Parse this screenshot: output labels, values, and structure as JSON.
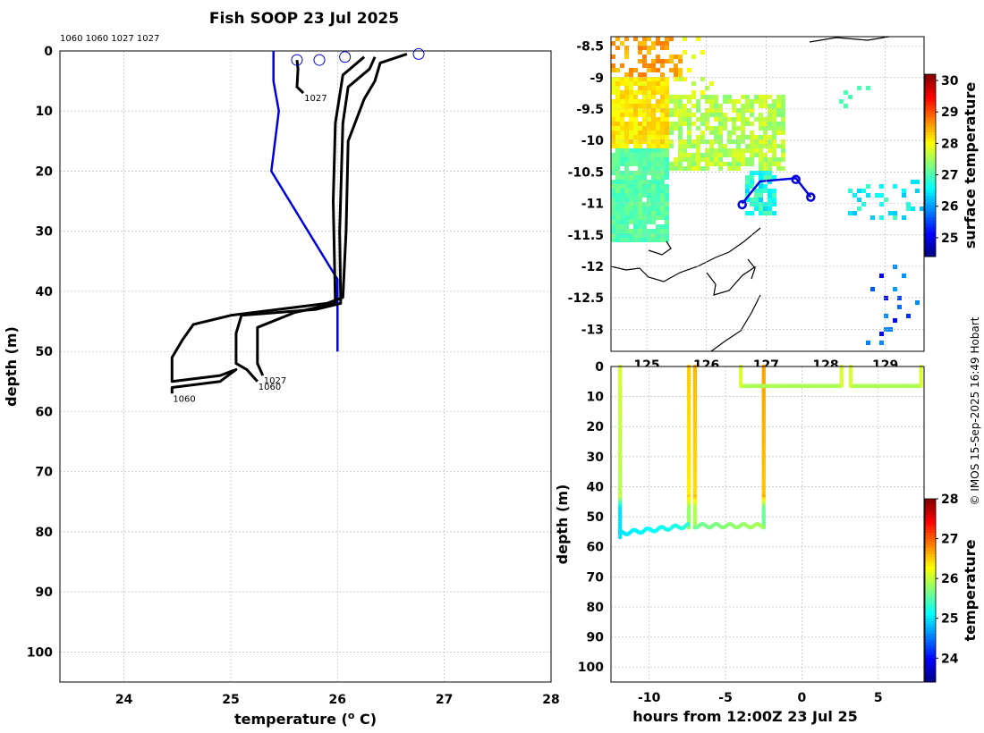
{
  "title": "Fish SOOP 23 Jul 2025",
  "credit": "© IMOS 15-Sep-2025 16:49 Hobart",
  "chart_data": [
    {
      "type": "line",
      "name": "temperature-profiles",
      "xlabel": "temperature (",
      "xlabel_sup": "o",
      "xlabel_end": " C)",
      "ylabel": "depth (m)",
      "xlim": [
        23.4,
        28.0
      ],
      "ylim": [
        105,
        0
      ],
      "xticks": [
        24,
        25,
        26,
        27,
        28
      ],
      "yticks": [
        0,
        10,
        20,
        30,
        40,
        50,
        60,
        70,
        80,
        90,
        100
      ],
      "top_labels": "1060 1060 1027 1027",
      "series": [
        {
          "name": "climatology",
          "color": "#0000dd",
          "points": [
            [
              25.4,
              0
            ],
            [
              25.4,
              5
            ],
            [
              25.45,
              10
            ],
            [
              25.38,
              20
            ],
            [
              26.0,
              38
            ],
            [
              26.0,
              50
            ]
          ]
        },
        {
          "name": "profile-1060-a",
          "color": "#000000",
          "label": "1060",
          "points": [
            [
              26.65,
              0.5
            ],
            [
              26.4,
              2
            ],
            [
              26.35,
              5
            ],
            [
              26.25,
              8
            ],
            [
              26.1,
              15
            ],
            [
              26.08,
              30
            ],
            [
              26.05,
              41
            ],
            [
              25.9,
              42
            ],
            [
              25.0,
              44
            ],
            [
              24.65,
              45.5
            ],
            [
              24.55,
              48
            ],
            [
              24.45,
              51
            ],
            [
              24.45,
              55
            ],
            [
              24.9,
              54
            ],
            [
              25.05,
              53
            ],
            [
              24.9,
              55
            ],
            [
              24.45,
              56
            ],
            [
              24.45,
              57
            ]
          ]
        },
        {
          "name": "profile-1060-b",
          "color": "#000000",
          "label": "1060",
          "points": [
            [
              26.35,
              1
            ],
            [
              26.3,
              3
            ],
            [
              26.1,
              6
            ],
            [
              26.05,
              12
            ],
            [
              26.02,
              30
            ],
            [
              26.03,
              42
            ],
            [
              25.8,
              43
            ],
            [
              25.1,
              44
            ],
            [
              25.05,
              47
            ],
            [
              25.05,
              52
            ],
            [
              25.15,
              53
            ],
            [
              25.2,
              54
            ],
            [
              25.25,
              55
            ]
          ]
        },
        {
          "name": "profile-1027-a",
          "color": "#000000",
          "label": "1027",
          "points": [
            [
              26.25,
              1
            ],
            [
              26.05,
              4
            ],
            [
              25.98,
              12
            ],
            [
              25.96,
              25
            ],
            [
              25.98,
              42
            ],
            [
              25.6,
              43.5
            ],
            [
              25.25,
              46
            ],
            [
              25.25,
              52
            ],
            [
              25.3,
              54
            ]
          ]
        },
        {
          "name": "profile-1027-b",
          "color": "#000000",
          "label": "1027",
          "points": [
            [
              25.62,
              1.5
            ],
            [
              25.63,
              3
            ],
            [
              25.62,
              6
            ],
            [
              25.68,
              7
            ]
          ]
        }
      ],
      "markers": [
        [
          25.62,
          1.5
        ],
        [
          25.83,
          1.5
        ],
        [
          26.07,
          1
        ],
        [
          26.76,
          0.5
        ]
      ]
    },
    {
      "type": "heatmap",
      "name": "surface-temperature-map",
      "xticks": [
        125,
        126,
        127,
        128,
        129
      ],
      "yticks": [
        -8.5,
        -9,
        -9.5,
        -10,
        -10.5,
        -11,
        -11.5,
        -12,
        -12.5,
        -13
      ],
      "xlim": [
        124.4,
        129.65
      ],
      "ylim": [
        -13.35,
        -8.35
      ],
      "colorbar_label": "surface temperature",
      "colorbar_range": [
        24.4,
        30.2
      ],
      "colorbar_ticks": [
        25,
        26,
        27,
        28,
        29,
        30
      ],
      "track": [
        [
          126.6,
          -11.0
        ],
        [
          126.9,
          -10.65
        ],
        [
          127.5,
          -10.6
        ],
        [
          127.75,
          -10.9
        ]
      ],
      "track_markers": [
        [
          126.6,
          -11.02
        ],
        [
          127.5,
          -10.62
        ],
        [
          127.75,
          -10.9
        ]
      ]
    },
    {
      "type": "scatter",
      "name": "depth-time-section",
      "xlabel": "hours from 12:00Z 23 Jul 25",
      "ylabel": "depth (m)",
      "xlim": [
        -12.5,
        8.0
      ],
      "ylim": [
        105,
        0
      ],
      "xticks": [
        -10,
        -5,
        0,
        5
      ],
      "yticks": [
        0,
        10,
        20,
        30,
        40,
        50,
        60,
        70,
        80,
        90,
        100
      ],
      "colorbar_label": "temperature",
      "colorbar_range": [
        23.4,
        28.0
      ],
      "colorbar_ticks": [
        24,
        25,
        26,
        27,
        28
      ],
      "casts": [
        {
          "hour": -11.9,
          "bottom": 57,
          "t_top": 26.1,
          "t_bottom": 25.0
        },
        {
          "hour": -7.4,
          "bottom": 54,
          "t_top": 26.5,
          "t_bottom": 25.8
        },
        {
          "hour": -7.0,
          "bottom": 54,
          "t_top": 26.6,
          "t_bottom": 25.9
        },
        {
          "hour": -2.5,
          "bottom": 54,
          "t_top": 26.7,
          "t_bottom": 25.6
        }
      ],
      "tow_segments": [
        {
          "from": -4.0,
          "to": 2.5,
          "depth": 6.5,
          "temp": 25.9
        },
        {
          "from": 3.2,
          "to": 7.8,
          "depth": 6.5,
          "temp": 25.9
        }
      ]
    }
  ]
}
